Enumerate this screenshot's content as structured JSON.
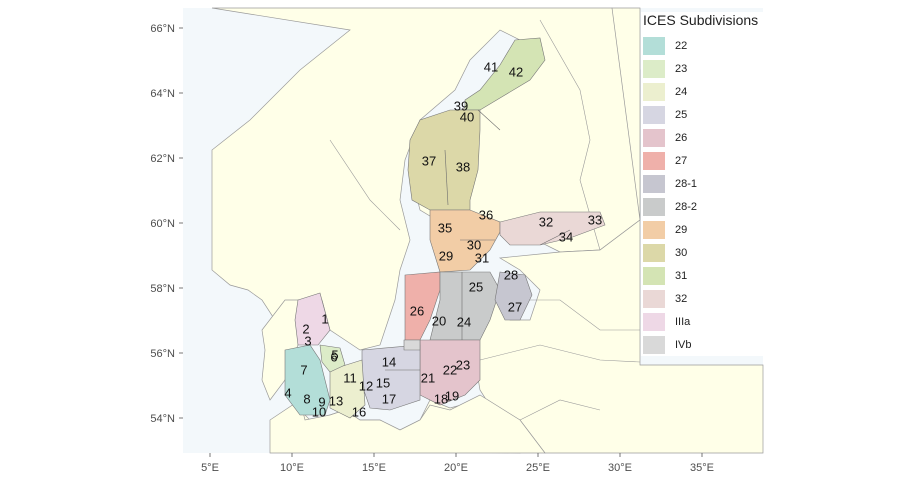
{
  "legend": {
    "title": "ICES Subdivisions",
    "items": [
      {
        "label": "22",
        "color": "#b3ded8"
      },
      {
        "label": "23",
        "color": "#dcecc8"
      },
      {
        "label": "24",
        "color": "#ecefcf"
      },
      {
        "label": "25",
        "color": "#d6d6e2"
      },
      {
        "label": "26",
        "color": "#e4c4cc"
      },
      {
        "label": "27",
        "color": "#efb0aa"
      },
      {
        "label": "28-1",
        "color": "#c6c6d0"
      },
      {
        "label": "28-2",
        "color": "#c9cbcb"
      },
      {
        "label": "29",
        "color": "#f2cda6"
      },
      {
        "label": "30",
        "color": "#dcd8a8"
      },
      {
        "label": "31",
        "color": "#d4e4b4"
      },
      {
        "label": "32",
        "color": "#ead8d6"
      },
      {
        "label": "IIIa",
        "color": "#eed8e6"
      },
      {
        "label": "IVb",
        "color": "#d9d9d9"
      }
    ]
  },
  "axes": {
    "y_ticks": [
      "66°N",
      "64°N",
      "62°N",
      "60°N",
      "58°N",
      "56°N",
      "54°N"
    ],
    "x_ticks": [
      "5°E",
      "10°E",
      "15°E",
      "20°E",
      "25°E",
      "30°E",
      "35°E"
    ]
  },
  "colors": {
    "sea": "#f3f8fb",
    "land": "#ffffe8",
    "border": "#9a9a9a"
  },
  "regions": [
    {
      "label": "41",
      "fill": "#d4e4b4"
    },
    {
      "label": "42",
      "fill": "#d4e4b4"
    },
    {
      "label": "39",
      "fill": "#dcd8a8"
    },
    {
      "label": "40",
      "fill": "#dcd8a8"
    },
    {
      "label": "37",
      "fill": "#dcd8a8"
    },
    {
      "label": "38",
      "fill": "#dcd8a8"
    },
    {
      "label": "36",
      "fill": "#f2cda6"
    },
    {
      "label": "35",
      "fill": "#f2cda6"
    },
    {
      "label": "29",
      "fill": "#f2cda6"
    },
    {
      "label": "30",
      "fill": "#f2cda6"
    },
    {
      "label": "31",
      "fill": "#f2cda6"
    },
    {
      "label": "32",
      "fill": "#ead8d6"
    },
    {
      "label": "33",
      "fill": "#ead8d6"
    },
    {
      "label": "34",
      "fill": "#ead8d6"
    },
    {
      "label": "28",
      "fill": "#c6c6d0"
    },
    {
      "label": "25",
      "fill": "#c9cbcb"
    },
    {
      "label": "27",
      "fill": "#c6c6d0"
    },
    {
      "label": "26",
      "fill": "#efb0aa"
    },
    {
      "label": "20",
      "fill": "#c9cbcb"
    },
    {
      "label": "24",
      "fill": "#c9cbcb"
    },
    {
      "label": "23",
      "fill": "#e4c4cc"
    },
    {
      "label": "22",
      "fill": "#e4c4cc"
    },
    {
      "label": "21",
      "fill": "#d6d6e2"
    },
    {
      "label": "19",
      "fill": "#e4c4cc"
    },
    {
      "label": "18",
      "fill": "#e4c4cc"
    },
    {
      "label": "14",
      "fill": "#d6d6e2"
    },
    {
      "label": "15",
      "fill": "#d6d6e2"
    },
    {
      "label": "17",
      "fill": "#d6d6e2"
    },
    {
      "label": "16",
      "fill": "#ecefcf"
    },
    {
      "label": "11",
      "fill": "#ecefcf"
    },
    {
      "label": "12",
      "fill": "#ecefcf"
    },
    {
      "label": "13",
      "fill": "#ecefcf"
    },
    {
      "label": "10",
      "fill": "#b3ded8"
    },
    {
      "label": "9",
      "fill": "#b3ded8"
    },
    {
      "label": "8",
      "fill": "#b3ded8"
    },
    {
      "label": "7",
      "fill": "#b3ded8"
    },
    {
      "label": "4",
      "fill": "#b3ded8"
    },
    {
      "label": "3",
      "fill": "#b3ded8"
    },
    {
      "label": "5",
      "fill": "#dcecc8"
    },
    {
      "label": "6",
      "fill": "#dcecc8"
    },
    {
      "label": "2",
      "fill": "#eed8e6"
    },
    {
      "label": "1",
      "fill": "#eed8e6"
    }
  ]
}
